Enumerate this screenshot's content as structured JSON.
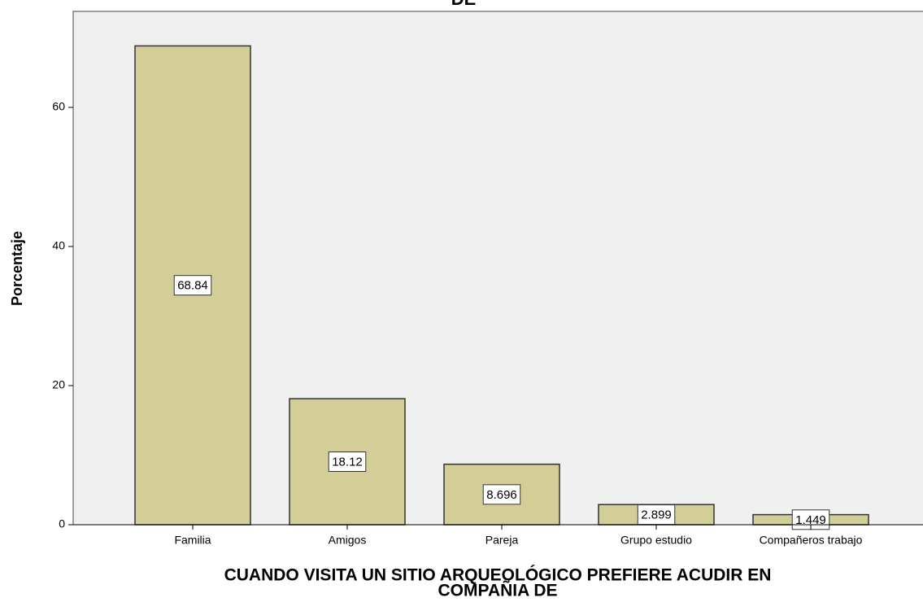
{
  "chart_data": {
    "type": "bar",
    "title": "DE",
    "categories": [
      "Familia",
      "Amigos",
      "Pareja",
      "Grupo estudio",
      "Compañeros trabajo"
    ],
    "values": [
      68.84,
      18.12,
      8.696,
      2.899,
      1.449
    ],
    "color": "#d3ce97",
    "ylabel": "Porcentaje",
    "xlabel": [
      "CUANDO VISITA UN SITIO ARQUEOLÓGICO PREFIERE ACUDIR EN",
      "COMPAÑIA DE"
    ],
    "ylim": [
      0,
      73.8
    ],
    "yticks": [
      0,
      20,
      40,
      60
    ]
  }
}
